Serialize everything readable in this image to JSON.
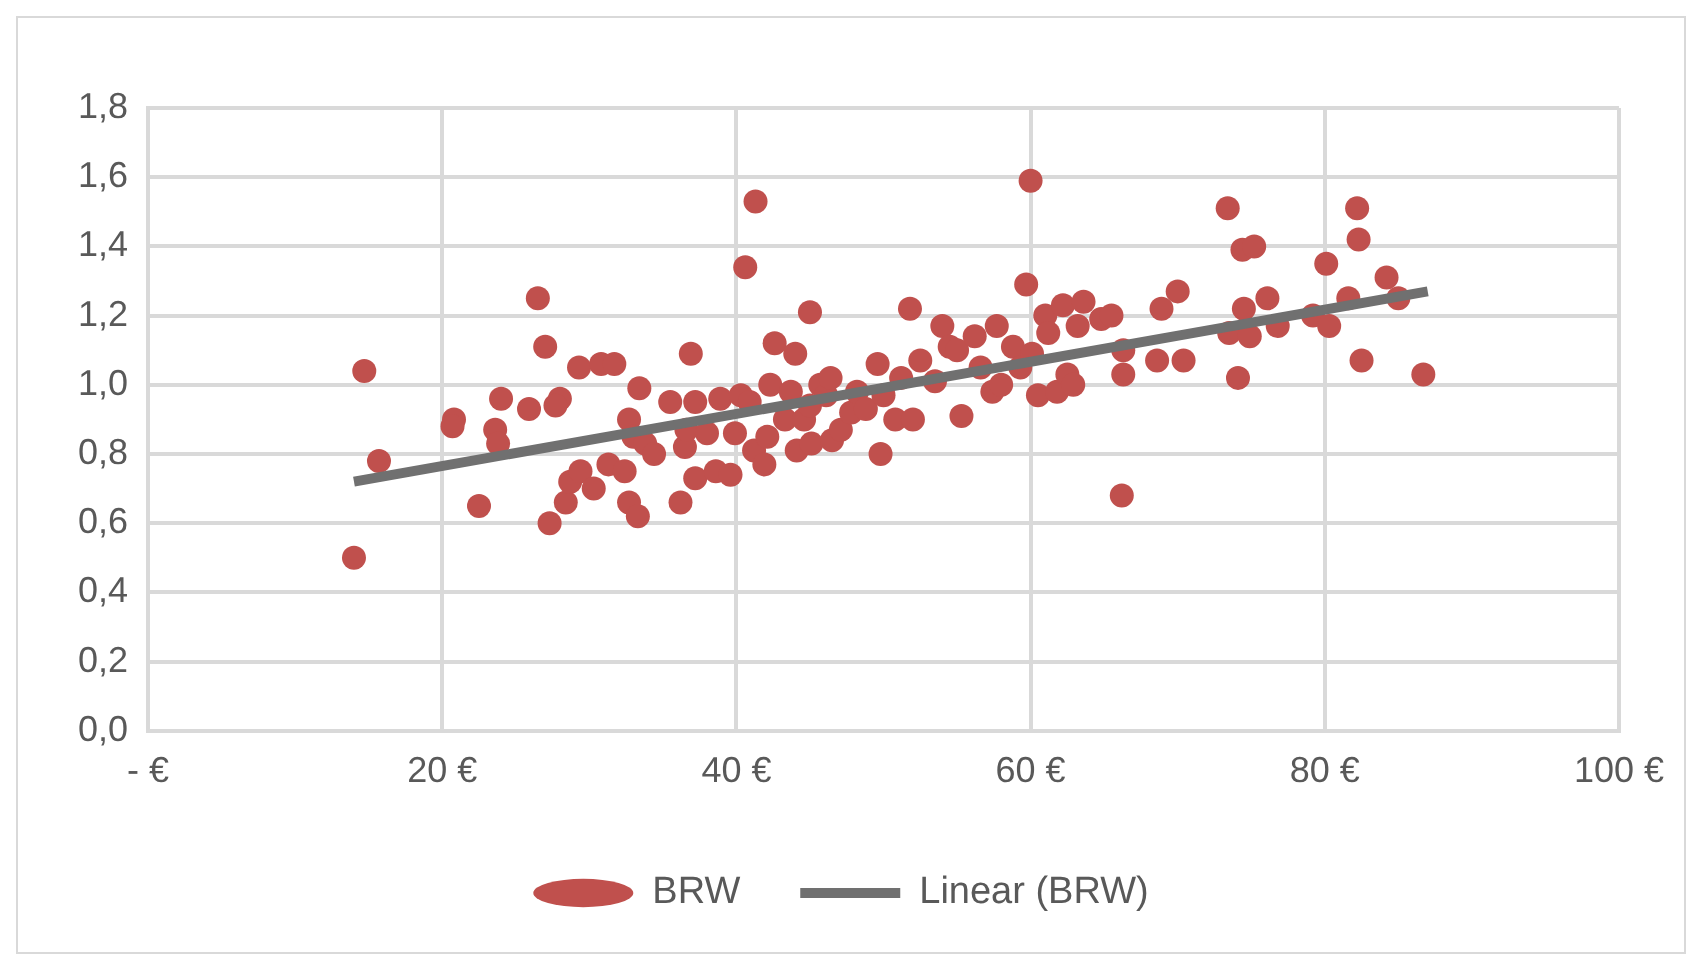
{
  "chart_data": {
    "type": "scatter",
    "xlim": [
      0,
      100
    ],
    "ylim": [
      0,
      1.8
    ],
    "xticks": [
      {
        "value": 0,
        "label": "- €"
      },
      {
        "value": 20,
        "label": "20 €"
      },
      {
        "value": 40,
        "label": "40 €"
      },
      {
        "value": 60,
        "label": "60 €"
      },
      {
        "value": 80,
        "label": "80 €"
      },
      {
        "value": 100,
        "label": "100 €"
      }
    ],
    "yticks": [
      {
        "value": 0,
        "label": "0,0"
      },
      {
        "value": 0.2,
        "label": "0,2"
      },
      {
        "value": 0.4,
        "label": "0,4"
      },
      {
        "value": 0.6,
        "label": "0,6"
      },
      {
        "value": 0.8,
        "label": "0,8"
      },
      {
        "value": 1,
        "label": "1,0"
      },
      {
        "value": 1.2,
        "label": "1,2"
      },
      {
        "value": 1.4,
        "label": "1,4"
      },
      {
        "value": 1.6,
        "label": "1,6"
      },
      {
        "value": 1.8,
        "label": "1,8"
      }
    ],
    "grid": true,
    "legend": "bottom",
    "series": [
      {
        "name": "BRW",
        "marker": "circle",
        "color": "#c0504d",
        "x": [
          14,
          14.7,
          15.7,
          20.8,
          20.7,
          22.5,
          23.6,
          23.8,
          24,
          25.9,
          26.5,
          27,
          27.3,
          28,
          27.7,
          28.4,
          28.7,
          29.3,
          29.4,
          30.3,
          30.8,
          31.3,
          31.7,
          32.4,
          32.7,
          32.7,
          33,
          33.3,
          33.4,
          33.8,
          34.4,
          35.5,
          36.2,
          36.5,
          36.6,
          36.9,
          37.2,
          37.2,
          38,
          38.6,
          38.9,
          39.6,
          39.9,
          40.3,
          40.6,
          41.3,
          40.9,
          41.2,
          41.9,
          42.1,
          42.3,
          42.6,
          43.3,
          43.7,
          44,
          44.1,
          44.6,
          45,
          45,
          45.1,
          45.7,
          46.1,
          46.4,
          46.5,
          47.1,
          47.8,
          48.2,
          48.8,
          49.6,
          49.8,
          50,
          50.8,
          51.2,
          51.8,
          52,
          52.5,
          53.5,
          54,
          54.5,
          55,
          55.3,
          56.2,
          56.6,
          57.4,
          57.7,
          58,
          58.8,
          59.3,
          59.7,
          60,
          60.1,
          60.5,
          61,
          61.2,
          61.8,
          62.2,
          62.5,
          62.9,
          63.2,
          63.6,
          64.8,
          65.5,
          66.2,
          66.3,
          66.3,
          68.6,
          68.9,
          70,
          70.4,
          73.4,
          74.4,
          74.1,
          73.5,
          74.5,
          74.9,
          75.2,
          76.1,
          76.8,
          79.2,
          80.1,
          80.3,
          81.6,
          82.2,
          82.3,
          82.5,
          84.2,
          85,
          86.7
        ],
        "values": [
          0.5,
          1.04,
          0.78,
          0.9,
          0.88,
          0.65,
          0.87,
          0.83,
          0.96,
          0.93,
          1.25,
          1.11,
          0.6,
          0.96,
          0.94,
          0.66,
          0.72,
          1.05,
          0.75,
          0.7,
          1.06,
          0.77,
          1.06,
          0.75,
          0.9,
          0.66,
          0.85,
          0.62,
          0.99,
          0.83,
          0.8,
          0.95,
          0.66,
          0.82,
          0.87,
          1.09,
          0.73,
          0.95,
          0.86,
          0.75,
          0.96,
          0.74,
          0.86,
          0.97,
          1.34,
          1.53,
          0.95,
          0.81,
          0.77,
          0.85,
          1,
          1.12,
          0.9,
          0.98,
          1.09,
          0.81,
          0.9,
          0.94,
          1.21,
          0.83,
          1,
          0.97,
          1.02,
          0.84,
          0.87,
          0.92,
          0.98,
          0.93,
          1.06,
          0.8,
          0.97,
          0.9,
          1.02,
          1.22,
          0.9,
          1.07,
          1.01,
          1.17,
          1.11,
          1.1,
          0.91,
          1.14,
          1.05,
          0.98,
          1.17,
          1,
          1.11,
          1.05,
          1.29,
          1.59,
          1.09,
          0.97,
          1.2,
          1.15,
          0.98,
          1.23,
          1.03,
          1,
          1.17,
          1.24,
          1.19,
          1.2,
          0.68,
          1.03,
          1.1,
          1.07,
          1.22,
          1.27,
          1.07,
          1.51,
          1.39,
          1.02,
          1.15,
          1.22,
          1.14,
          1.4,
          1.25,
          1.17,
          1.2,
          1.35,
          1.17,
          1.25,
          1.51,
          1.42,
          1.07,
          1.31,
          1.25,
          1.03
        ]
      },
      {
        "name": "Linear (BRW)",
        "type": "line",
        "marker": "none",
        "color": "#707070",
        "x": [
          14,
          87
        ],
        "values": [
          0.72,
          1.27
        ]
      }
    ]
  }
}
